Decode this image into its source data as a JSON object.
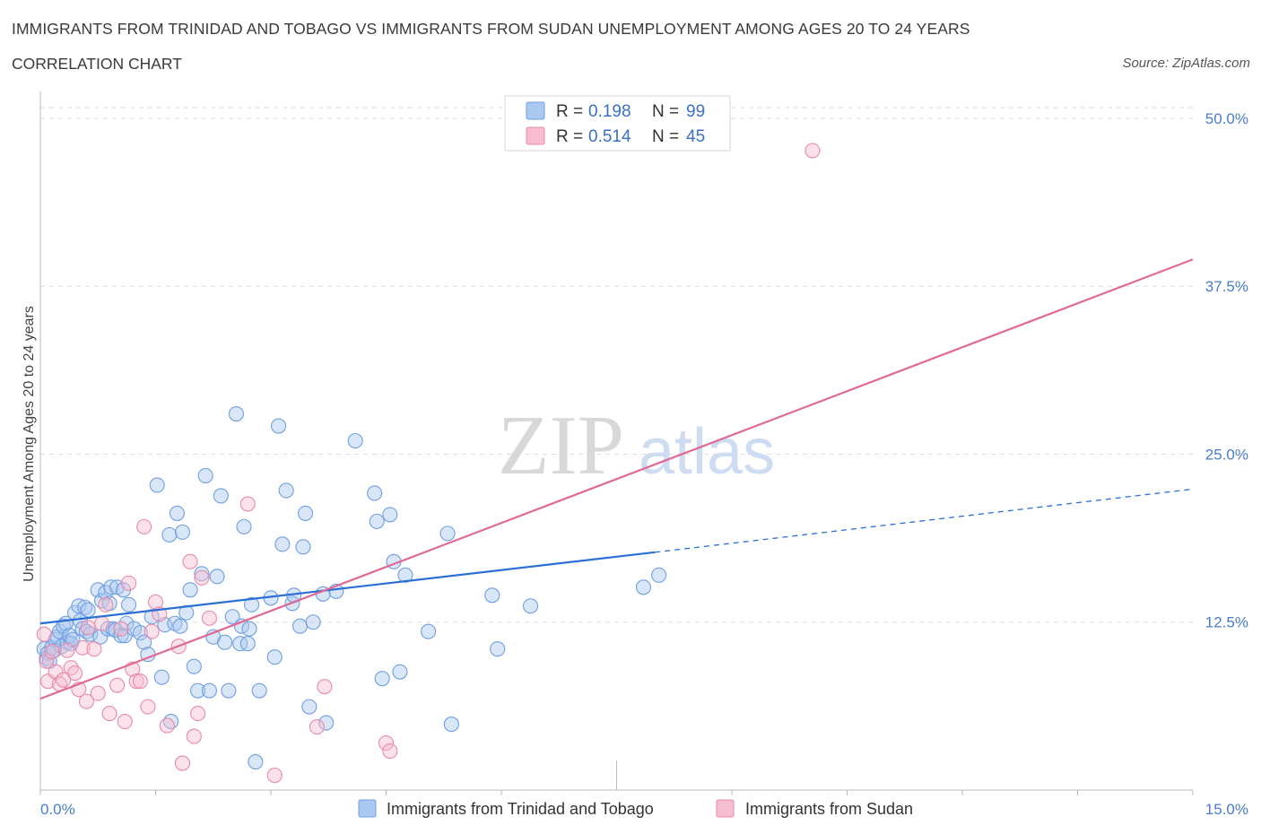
{
  "title": "IMMIGRANTS FROM TRINIDAD AND TOBAGO VS IMMIGRANTS FROM SUDAN UNEMPLOYMENT AMONG AGES 20 TO 24 YEARS",
  "subtitle": "CORRELATION CHART",
  "source": "Source: ZipAtlas.com",
  "watermark": {
    "zip": "ZIP",
    "atlas": "atlas"
  },
  "colors": {
    "blue_fill": "#aac8f0",
    "blue_stroke": "#6e9fe0",
    "blue_line": "#2a6fd6",
    "pink_fill": "#f6bcd0",
    "pink_stroke": "#e88aab",
    "pink_line": "#e06893",
    "axis_text": "#4a7cc8",
    "grid": "#dddddd"
  },
  "legend": [
    {
      "r_label": "R = ",
      "r_value": "0.198",
      "n_label": "N = ",
      "n_value": "99"
    },
    {
      "r_label": "R = ",
      "r_value": "0.514",
      "n_label": "N = ",
      "n_value": "45"
    }
  ],
  "chart_data": {
    "type": "scatter",
    "xlabel": "",
    "ylabel": "Unemployment Among Ages 20 to 24 years",
    "xlim": [
      0,
      15
    ],
    "ylim": [
      0,
      52
    ],
    "x_tick_labels": [
      {
        "value": 0,
        "label": "0.0%"
      },
      {
        "value": 15,
        "label": "15.0%"
      }
    ],
    "y_tick_labels": [
      {
        "value": 12.5,
        "label": "12.5%"
      },
      {
        "value": 25,
        "label": "25.0%"
      },
      {
        "value": 37.5,
        "label": "37.5%"
      },
      {
        "value": 50,
        "label": "50.0%"
      }
    ],
    "grid": "horizontal-dashed",
    "legend_position": "top-center",
    "series": [
      {
        "name": "Immigrants from Trinidad and Tobago",
        "color": "blue",
        "trend": {
          "x0": 0,
          "y0": 12.4,
          "x1": 8.0,
          "y1": 17.7,
          "dashed_to_x": 15,
          "dashed_to_y": 22.4
        },
        "points": [
          [
            0.05,
            10.5
          ],
          [
            0.08,
            9.8
          ],
          [
            0.1,
            10.2
          ],
          [
            0.12,
            9.6
          ],
          [
            0.15,
            10.6
          ],
          [
            0.18,
            10.4
          ],
          [
            0.2,
            11.2
          ],
          [
            0.22,
            11.4
          ],
          [
            0.25,
            11.8
          ],
          [
            0.28,
            10.7
          ],
          [
            0.3,
            12.2
          ],
          [
            0.33,
            12.4
          ],
          [
            0.35,
            11.0
          ],
          [
            0.38,
            11.5
          ],
          [
            0.4,
            10.9
          ],
          [
            0.42,
            11.2
          ],
          [
            0.45,
            13.2
          ],
          [
            0.5,
            13.7
          ],
          [
            0.52,
            12.6
          ],
          [
            0.55,
            12.0
          ],
          [
            0.58,
            13.6
          ],
          [
            0.6,
            11.8
          ],
          [
            0.62,
            13.4
          ],
          [
            0.65,
            11.6
          ],
          [
            0.75,
            14.9
          ],
          [
            0.78,
            11.4
          ],
          [
            0.8,
            14.1
          ],
          [
            0.85,
            14.7
          ],
          [
            0.88,
            12.0
          ],
          [
            0.9,
            13.9
          ],
          [
            0.92,
            15.1
          ],
          [
            0.95,
            12.0
          ],
          [
            0.98,
            11.9
          ],
          [
            1.0,
            15.1
          ],
          [
            1.05,
            11.5
          ],
          [
            1.08,
            14.9
          ],
          [
            1.1,
            11.5
          ],
          [
            1.12,
            12.4
          ],
          [
            1.15,
            13.8
          ],
          [
            1.22,
            12.0
          ],
          [
            1.3,
            11.7
          ],
          [
            1.35,
            11.0
          ],
          [
            1.4,
            10.1
          ],
          [
            1.45,
            12.9
          ],
          [
            1.52,
            22.7
          ],
          [
            1.58,
            8.4
          ],
          [
            1.62,
            12.3
          ],
          [
            1.68,
            19.0
          ],
          [
            1.7,
            5.1
          ],
          [
            1.75,
            12.4
          ],
          [
            1.78,
            20.6
          ],
          [
            1.82,
            12.2
          ],
          [
            1.85,
            19.2
          ],
          [
            1.9,
            13.2
          ],
          [
            1.95,
            14.9
          ],
          [
            2.0,
            9.2
          ],
          [
            2.05,
            7.4
          ],
          [
            2.1,
            16.1
          ],
          [
            2.15,
            23.4
          ],
          [
            2.2,
            7.4
          ],
          [
            2.25,
            11.4
          ],
          [
            2.3,
            15.9
          ],
          [
            2.35,
            21.9
          ],
          [
            2.4,
            11.0
          ],
          [
            2.45,
            7.4
          ],
          [
            2.5,
            12.9
          ],
          [
            2.55,
            28.0
          ],
          [
            2.6,
            10.9
          ],
          [
            2.62,
            12.2
          ],
          [
            2.65,
            19.6
          ],
          [
            2.7,
            10.9
          ],
          [
            2.72,
            12.0
          ],
          [
            2.75,
            13.8
          ],
          [
            2.8,
            2.1
          ],
          [
            2.85,
            7.4
          ],
          [
            3.0,
            14.3
          ],
          [
            3.05,
            9.9
          ],
          [
            3.1,
            27.1
          ],
          [
            3.15,
            18.3
          ],
          [
            3.2,
            22.3
          ],
          [
            3.28,
            13.9
          ],
          [
            3.3,
            14.5
          ],
          [
            3.38,
            12.2
          ],
          [
            3.42,
            18.1
          ],
          [
            3.45,
            20.6
          ],
          [
            3.5,
            6.2
          ],
          [
            3.55,
            12.5
          ],
          [
            3.68,
            14.6
          ],
          [
            3.72,
            5.0
          ],
          [
            3.85,
            14.8
          ],
          [
            4.1,
            26.0
          ],
          [
            4.35,
            22.1
          ],
          [
            4.38,
            20.0
          ],
          [
            4.45,
            8.3
          ],
          [
            4.55,
            20.5
          ],
          [
            4.6,
            17.0
          ],
          [
            4.68,
            8.8
          ],
          [
            4.75,
            16.0
          ],
          [
            5.05,
            11.8
          ],
          [
            5.3,
            19.1
          ],
          [
            5.35,
            4.9
          ],
          [
            5.88,
            14.5
          ],
          [
            5.95,
            10.5
          ],
          [
            6.38,
            13.7
          ],
          [
            7.85,
            15.1
          ],
          [
            8.05,
            16.0
          ]
        ]
      },
      {
        "name": "Immigrants from Sudan",
        "color": "pink",
        "trend": {
          "x0": 0,
          "y0": 6.8,
          "x1": 15,
          "y1": 39.5
        },
        "points": [
          [
            0.05,
            11.6
          ],
          [
            0.08,
            9.6
          ],
          [
            0.1,
            8.1
          ],
          [
            0.15,
            10.3
          ],
          [
            0.2,
            8.8
          ],
          [
            0.25,
            7.9
          ],
          [
            0.3,
            8.2
          ],
          [
            0.35,
            10.4
          ],
          [
            0.4,
            9.1
          ],
          [
            0.45,
            8.7
          ],
          [
            0.5,
            7.5
          ],
          [
            0.55,
            10.6
          ],
          [
            0.6,
            6.6
          ],
          [
            0.62,
            12.1
          ],
          [
            0.7,
            10.5
          ],
          [
            0.75,
            7.2
          ],
          [
            0.8,
            12.4
          ],
          [
            0.85,
            13.8
          ],
          [
            0.9,
            5.7
          ],
          [
            1.0,
            7.8
          ],
          [
            1.05,
            12.0
          ],
          [
            1.1,
            5.1
          ],
          [
            1.15,
            15.4
          ],
          [
            1.2,
            9.0
          ],
          [
            1.25,
            8.1
          ],
          [
            1.3,
            8.1
          ],
          [
            1.35,
            19.6
          ],
          [
            1.4,
            6.2
          ],
          [
            1.45,
            11.8
          ],
          [
            1.5,
            14.0
          ],
          [
            1.55,
            13.1
          ],
          [
            1.65,
            4.8
          ],
          [
            1.8,
            10.7
          ],
          [
            1.85,
            2.0
          ],
          [
            1.95,
            17.0
          ],
          [
            2.0,
            4.0
          ],
          [
            2.05,
            5.7
          ],
          [
            2.1,
            15.8
          ],
          [
            2.2,
            12.8
          ],
          [
            2.7,
            21.3
          ],
          [
            3.05,
            1.1
          ],
          [
            3.6,
            4.7
          ],
          [
            3.7,
            7.7
          ],
          [
            4.5,
            3.5
          ],
          [
            4.55,
            2.9
          ],
          [
            10.05,
            47.6
          ]
        ]
      }
    ]
  }
}
